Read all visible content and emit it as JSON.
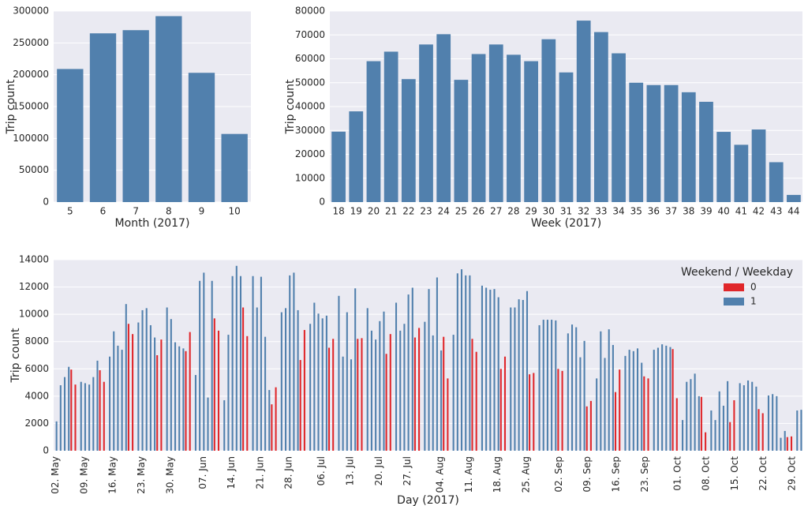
{
  "chart_data": [
    {
      "type": "bar",
      "xlabel": "Month (2017)",
      "ylabel": "Trip count",
      "categories": [
        "5",
        "6",
        "7",
        "8",
        "9",
        "10"
      ],
      "values": [
        209000,
        265000,
        270000,
        292000,
        203000,
        107000
      ],
      "color": "#5180ad",
      "ylim": [
        0,
        300000
      ],
      "yticks": [
        0,
        50000,
        100000,
        150000,
        200000,
        250000,
        300000
      ],
      "grid": true
    },
    {
      "type": "bar",
      "xlabel": "Week (2017)",
      "ylabel": "Trip count",
      "categories": [
        "18",
        "19",
        "20",
        "21",
        "22",
        "23",
        "24",
        "25",
        "26",
        "27",
        "28",
        "29",
        "30",
        "31",
        "32",
        "33",
        "34",
        "35",
        "36",
        "37",
        "38",
        "39",
        "40",
        "41",
        "42",
        "43",
        "44"
      ],
      "values": [
        29500,
        38000,
        59000,
        63000,
        51500,
        66000,
        70300,
        51200,
        62000,
        66000,
        61700,
        59000,
        68200,
        54300,
        76000,
        71200,
        62300,
        50000,
        49000,
        49000,
        46000,
        42000,
        29400,
        24000,
        30400,
        16700,
        3000
      ],
      "color": "#5180ad",
      "ylim": [
        0,
        80000
      ],
      "yticks": [
        0,
        10000,
        20000,
        30000,
        40000,
        50000,
        60000,
        70000,
        80000
      ],
      "grid": true
    },
    {
      "type": "bar",
      "xlabel": "Day (2017)",
      "ylabel": "Trip count",
      "legend_title": "Weekend / Weekday",
      "legend": "upper right",
      "categories": [
        "02. May",
        null,
        null,
        null,
        null,
        null,
        null,
        "09. May",
        null,
        null,
        null,
        null,
        null,
        null,
        "16. May",
        null,
        null,
        null,
        null,
        null,
        null,
        "23. May",
        null,
        null,
        null,
        null,
        null,
        null,
        "30. May",
        null,
        null,
        null,
        null,
        null,
        null,
        null,
        "07. Jun",
        null,
        null,
        null,
        null,
        null,
        null,
        "14. Jun",
        null,
        null,
        null,
        null,
        null,
        null,
        "21. Jun",
        null,
        null,
        null,
        null,
        null,
        null,
        "28. Jun",
        null,
        null,
        null,
        null,
        null,
        null,
        null,
        "06. Jul",
        null,
        null,
        null,
        null,
        null,
        null,
        "13. Jul",
        null,
        null,
        null,
        null,
        null,
        null,
        "20. Jul",
        null,
        null,
        null,
        null,
        null,
        null,
        "27. Jul",
        null,
        null,
        null,
        null,
        null,
        null,
        null,
        "04. Aug",
        null,
        null,
        null,
        null,
        null,
        null,
        "11. Aug",
        null,
        null,
        null,
        null,
        null,
        null,
        "18. Aug",
        null,
        null,
        null,
        null,
        null,
        null,
        "25. Aug",
        null,
        null,
        null,
        null,
        null,
        null,
        null,
        "02. Sep",
        null,
        null,
        null,
        null,
        null,
        null,
        "09. Sep",
        null,
        null,
        null,
        null,
        null,
        null,
        "16. Sep",
        null,
        null,
        null,
        null,
        null,
        null,
        "23. Sep",
        null,
        null,
        null,
        null,
        null,
        null,
        null,
        "01. Oct",
        null,
        null,
        null,
        null,
        null,
        null,
        "08. Oct",
        null,
        null,
        null,
        null,
        null,
        null,
        "15. Oct",
        null,
        null,
        null,
        null,
        null,
        null,
        "22. Oct",
        null,
        null,
        null,
        null,
        null,
        null,
        "29. Oct",
        null,
        null
      ],
      "series": [
        {
          "name": "0",
          "color": "#e0262a",
          "values": [
            null,
            null,
            null,
            null,
            5950,
            4850,
            null,
            null,
            null,
            null,
            null,
            5900,
            5050,
            null,
            null,
            null,
            null,
            null,
            9300,
            8550,
            null,
            null,
            null,
            null,
            null,
            7000,
            8150,
            null,
            null,
            null,
            null,
            null,
            7300,
            8700,
            null,
            null,
            null,
            null,
            null,
            9700,
            8800,
            null,
            null,
            null,
            null,
            null,
            10500,
            8400,
            null,
            null,
            null,
            null,
            null,
            3400,
            4650,
            null,
            null,
            null,
            null,
            null,
            6650,
            8850,
            null,
            null,
            null,
            null,
            null,
            7550,
            8200,
            null,
            null,
            null,
            null,
            null,
            8200,
            8250,
            null,
            null,
            null,
            null,
            null,
            7100,
            8550,
            null,
            null,
            null,
            null,
            null,
            8300,
            9000,
            null,
            null,
            null,
            null,
            null,
            8350,
            5300,
            null,
            null,
            null,
            null,
            null,
            8200,
            7250,
            null,
            null,
            null,
            null,
            null,
            6000,
            6900,
            null,
            null,
            null,
            null,
            null,
            5600,
            5700,
            null,
            null,
            null,
            null,
            null,
            6000,
            5850,
            null,
            null,
            null,
            null,
            null,
            3250,
            3650,
            null,
            null,
            null,
            null,
            null,
            4300,
            5950,
            null,
            null,
            null,
            null,
            null,
            5450,
            5300,
            null,
            null,
            null,
            null,
            null,
            7450,
            3850,
            null,
            null,
            null,
            null,
            null,
            3950,
            1350,
            null,
            null,
            null,
            null,
            null,
            2100,
            3700,
            null,
            null,
            null,
            null,
            null,
            3050,
            2750,
            null,
            null,
            null,
            null,
            null,
            1000,
            1050,
            null,
            null
          ]
        },
        {
          "name": "1",
          "color": "#5180ad",
          "values": [
            2150,
            4800,
            5400,
            6150,
            null,
            null,
            5050,
            4950,
            4850,
            5400,
            6600,
            null,
            null,
            6900,
            8750,
            7700,
            7400,
            10750,
            null,
            null,
            9400,
            10300,
            10450,
            9200,
            8300,
            null,
            null,
            10500,
            9650,
            7950,
            7650,
            7500,
            null,
            null,
            5550,
            12450,
            13050,
            3900,
            12450,
            null,
            null,
            3700,
            8500,
            12800,
            13550,
            12800,
            null,
            null,
            12800,
            10500,
            12750,
            8350,
            4450,
            null,
            null,
            10150,
            10450,
            12850,
            13050,
            10300,
            null,
            null,
            9300,
            10850,
            10050,
            9700,
            9900,
            null,
            null,
            11350,
            6900,
            10150,
            6700,
            11900,
            null,
            null,
            10450,
            8800,
            8150,
            9500,
            10200,
            null,
            null,
            10850,
            8800,
            9300,
            11450,
            11950,
            null,
            null,
            9450,
            11850,
            8450,
            12700,
            7350,
            null,
            null,
            8500,
            13000,
            13300,
            12850,
            12850,
            null,
            null,
            12100,
            11950,
            11800,
            11850,
            11250,
            null,
            null,
            10500,
            10500,
            11100,
            11050,
            11700,
            null,
            null,
            9200,
            9600,
            9600,
            9600,
            9550,
            null,
            null,
            8600,
            9250,
            9050,
            6850,
            8050,
            null,
            null,
            5300,
            8750,
            6800,
            8900,
            7750,
            null,
            null,
            6950,
            7400,
            7300,
            7500,
            6450,
            null,
            null,
            7400,
            7550,
            7800,
            7700,
            7600,
            null,
            null,
            2250,
            5050,
            5250,
            5650,
            4000,
            null,
            null,
            2950,
            2250,
            4350,
            3300,
            5100,
            null,
            null,
            4950,
            4800,
            5150,
            5050,
            4700,
            null,
            null,
            4050,
            4150,
            4000,
            950,
            1450,
            null,
            null,
            2950,
            3000
          ]
        }
      ],
      "ylim": [
        0,
        14000
      ],
      "yticks": [
        0,
        2000,
        4000,
        6000,
        8000,
        10000,
        12000,
        14000
      ],
      "grid": true
    }
  ]
}
